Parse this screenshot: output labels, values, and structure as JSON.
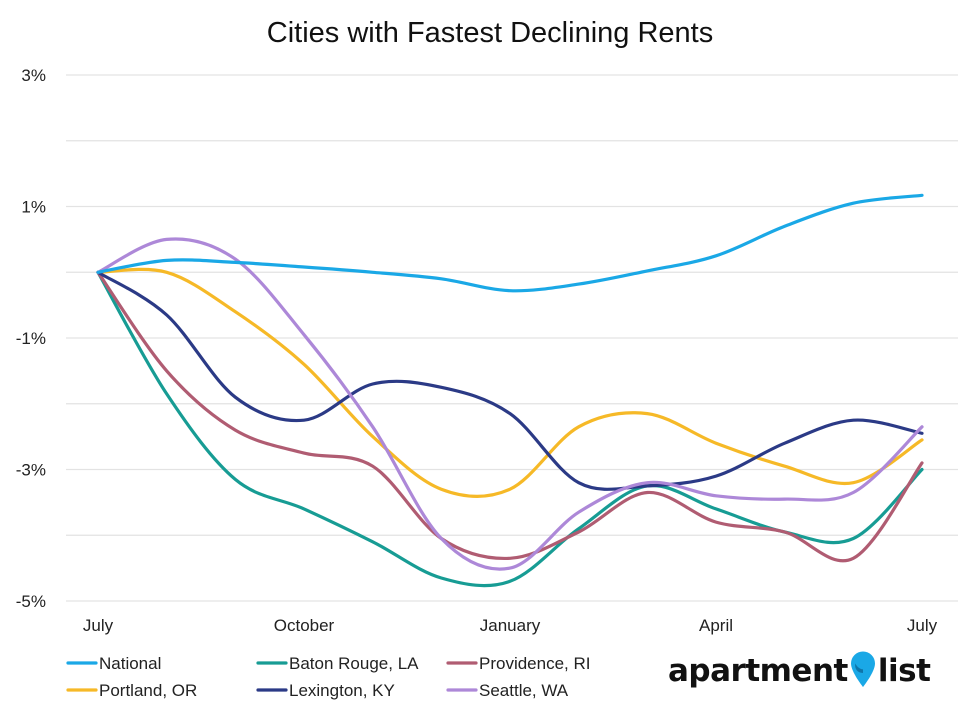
{
  "chart_data": {
    "type": "line",
    "title": "Cities with Fastest Declining Rents",
    "xlabel": "",
    "ylabel": "",
    "x_ticks": [
      "July",
      "October",
      "January",
      "April",
      "July"
    ],
    "x": [
      0,
      1,
      2,
      3,
      4,
      5,
      6,
      7,
      8,
      9,
      10,
      11,
      12
    ],
    "y_ticks": [
      "3%",
      "1%",
      "-1%",
      "-3%",
      "-5%"
    ],
    "y_tick_values": [
      3,
      1,
      -1,
      -3,
      -5
    ],
    "ylim": [
      -5,
      3
    ],
    "grid": true,
    "legend_position": "bottom-left",
    "series": [
      {
        "name": "National",
        "color": "#1aa8e6",
        "values": [
          0.0,
          0.18,
          0.15,
          0.08,
          0.0,
          -0.1,
          -0.28,
          -0.18,
          0.02,
          0.25,
          0.7,
          1.05,
          1.17
        ]
      },
      {
        "name": "Baton Rouge, LA",
        "color": "#179c94",
        "values": [
          0.0,
          -1.85,
          -3.15,
          -3.6,
          -4.1,
          -4.65,
          -4.7,
          -3.9,
          -3.25,
          -3.6,
          -3.95,
          -4.05,
          -3.0
        ]
      },
      {
        "name": "Providence, RI",
        "color": "#b05c72",
        "values": [
          0.0,
          -1.5,
          -2.4,
          -2.75,
          -2.95,
          -4.05,
          -4.35,
          -3.95,
          -3.35,
          -3.8,
          -3.95,
          -4.35,
          -2.9
        ]
      },
      {
        "name": "Portland, OR",
        "color": "#f6b927",
        "values": [
          0.0,
          0.0,
          -0.6,
          -1.4,
          -2.5,
          -3.3,
          -3.3,
          -2.35,
          -2.15,
          -2.6,
          -2.95,
          -3.2,
          -2.55
        ]
      },
      {
        "name": "Lexington, KY",
        "color": "#2b3a86",
        "values": [
          0.0,
          -0.65,
          -1.9,
          -2.25,
          -1.7,
          -1.75,
          -2.15,
          -3.2,
          -3.25,
          -3.1,
          -2.6,
          -2.25,
          -2.45
        ]
      },
      {
        "name": "Seattle, WA",
        "color": "#ad88d8",
        "values": [
          0.0,
          0.5,
          0.2,
          -0.95,
          -2.35,
          -4.05,
          -4.5,
          -3.65,
          -3.2,
          -3.4,
          -3.45,
          -3.35,
          -2.35
        ]
      }
    ],
    "legend_layout": [
      "National",
      "Baton Rouge, LA",
      "Providence, RI",
      "Portland, OR",
      "Lexington, KY",
      "Seattle, WA"
    ]
  },
  "brand": {
    "text_left": "apartment",
    "text_right": "list",
    "pin_color": "#1aa8e6"
  }
}
